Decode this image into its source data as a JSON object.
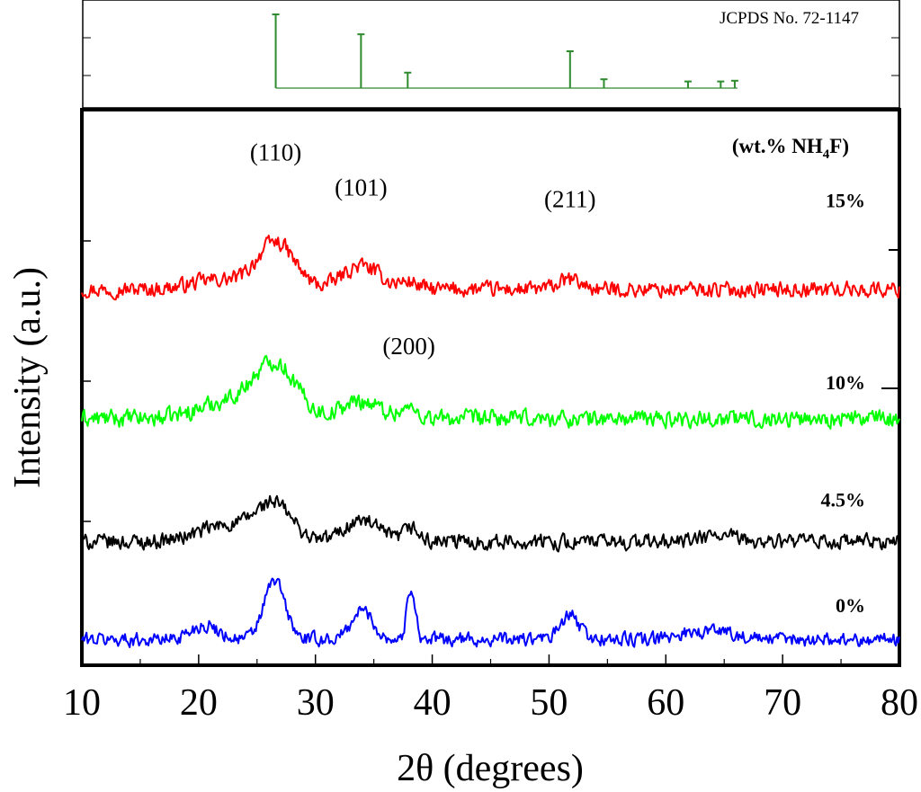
{
  "chart_data": [
    {
      "type": "bar",
      "panel": "reference-pattern",
      "title": "JCPDS No. 72-1147",
      "x": [
        26.6,
        33.9,
        37.9,
        51.8,
        54.7,
        61.9,
        64.7,
        65.9
      ],
      "values": [
        100,
        73,
        21,
        50,
        12,
        9,
        9,
        10
      ],
      "xlim": [
        10,
        80
      ],
      "ylim": [
        0,
        100
      ],
      "color": "#2e8b2e"
    },
    {
      "type": "line",
      "panel": "xrd-patterns",
      "legend_title": "(wt.% NH",
      "legend_sub": "4",
      "legend_tail": "F)",
      "xlabel": "2θ (degrees)",
      "ylabel": "Intensity (a.u.)",
      "xlim": [
        10,
        80
      ],
      "ylim": [
        0,
        470
      ],
      "xticks": [
        "10",
        "20",
        "30",
        "40",
        "50",
        "60",
        "70",
        "80"
      ],
      "xtick_values": [
        10,
        20,
        30,
        40,
        50,
        60,
        70,
        80
      ],
      "peak_labels": [
        {
          "text": "(110)",
          "x": 26.6,
          "y": 430
        },
        {
          "text": "(101)",
          "x": 33.9,
          "y": 400
        },
        {
          "text": "(200)",
          "x": 38.0,
          "y": 265
        },
        {
          "text": "(211)",
          "x": 51.8,
          "y": 390
        }
      ],
      "series": [
        {
          "name": "15%",
          "color": "#ff0000",
          "label_y": 390,
          "baseline": 320,
          "noise": 9,
          "peaks": [
            [
              26.6,
              40,
              1.6
            ],
            [
              33.9,
              20,
              1.6
            ],
            [
              38.0,
              6,
              0.8
            ],
            [
              51.8,
              8,
              1.0
            ],
            [
              21.5,
              8,
              2.2
            ]
          ]
        },
        {
          "name": "10%",
          "color": "#00ff00",
          "label_y": 235,
          "baseline": 210,
          "noise": 10,
          "peaks": [
            [
              26.6,
              45,
              1.8
            ],
            [
              33.9,
              15,
              1.6
            ],
            [
              38.0,
              8,
              0.8
            ],
            [
              22.5,
              14,
              2.5
            ]
          ]
        },
        {
          "name": "4.5%",
          "color": "#000000",
          "label_y": 135,
          "baseline": 105,
          "noise": 9,
          "peaks": [
            [
              26.5,
              30,
              1.5
            ],
            [
              33.9,
              18,
              1.5
            ],
            [
              38.2,
              12,
              0.6
            ],
            [
              22.5,
              14,
              2.5
            ],
            [
              64.5,
              5,
              1.5
            ]
          ]
        },
        {
          "name": "0%",
          "color": "#0000ff",
          "label_y": 45,
          "baseline": 22,
          "noise": 8,
          "peaks": [
            [
              26.5,
              50,
              0.9
            ],
            [
              34.0,
              25,
              0.9
            ],
            [
              38.2,
              45,
              0.35
            ],
            [
              51.8,
              20,
              0.8
            ],
            [
              20.5,
              12,
              1.2
            ],
            [
              61.9,
              6,
              1.0
            ],
            [
              64.7,
              8,
              1.2
            ]
          ]
        }
      ]
    }
  ]
}
